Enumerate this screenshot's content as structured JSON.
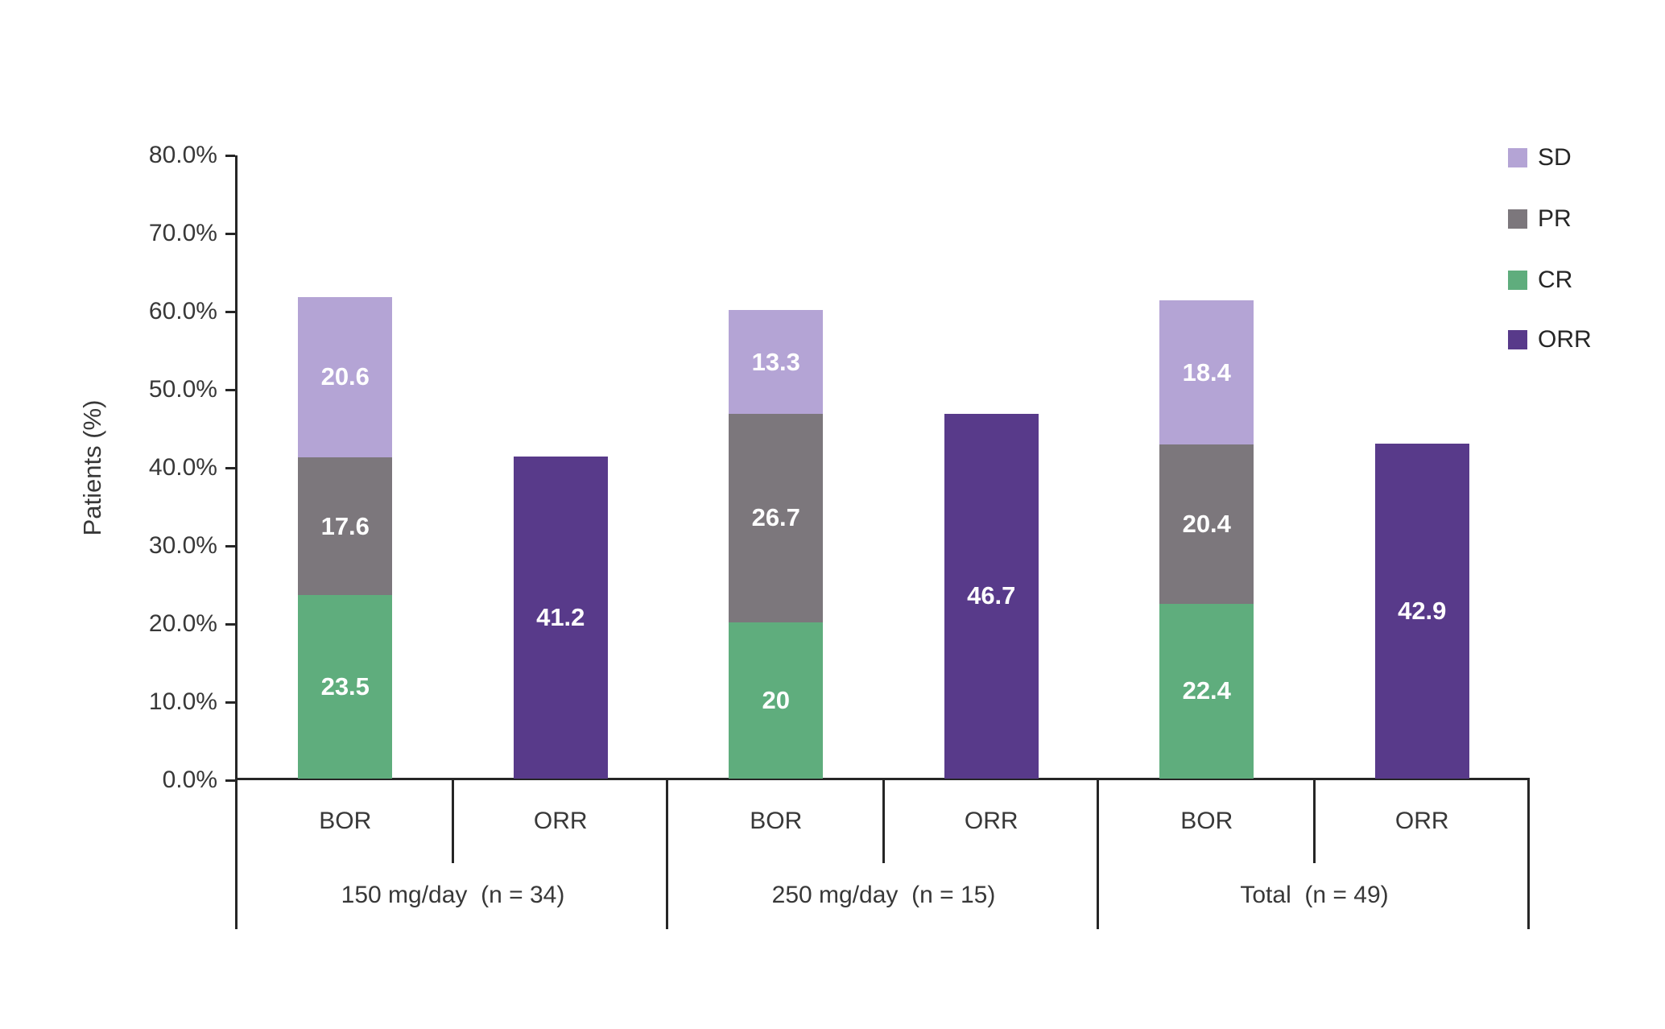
{
  "page": {
    "background": "#ffffff",
    "top_bar_color": "#000000"
  },
  "chart_data": {
    "type": "bar",
    "subtype": "grouped-stacked-column",
    "title": "",
    "xlabel": "",
    "ylabel": "Patients (%)",
    "grid": "off",
    "y_axis": {
      "min": 0,
      "max": 80,
      "step": 10,
      "ticks": [
        {
          "value": 0,
          "label": "0.0%"
        },
        {
          "value": 10,
          "label": "10.0%"
        },
        {
          "value": 20,
          "label": "20.0%"
        },
        {
          "value": 30,
          "label": "30.0%"
        },
        {
          "value": 40,
          "label": "40.0%"
        },
        {
          "value": 50,
          "label": "50.0%"
        },
        {
          "value": 60,
          "label": "60.0%"
        },
        {
          "value": 70,
          "label": "70.0%"
        },
        {
          "value": 80,
          "label": "80.0%"
        }
      ]
    },
    "legend": {
      "position": "top-right",
      "items": [
        {
          "series": "SD",
          "label": "SD"
        },
        {
          "series": "PR",
          "label": "PR"
        },
        {
          "series": "CR",
          "label": "CR"
        },
        {
          "series": "ORR",
          "label": "ORR"
        }
      ]
    },
    "series_colors": {
      "SD": "#b4a4d5",
      "PR": "#7c777c",
      "CR": "#5fad7d",
      "ORR": "#583a8a"
    },
    "value_label_color": "#ffffff",
    "axis_line_color": "#262626",
    "groups": [
      {
        "label": "150 mg/day  (n = 34)",
        "bars": [
          {
            "label": "BOR",
            "segments": [
              {
                "series": "CR",
                "value": 23.5,
                "display": "23.5"
              },
              {
                "series": "PR",
                "value": 17.6,
                "display": "17.6"
              },
              {
                "series": "SD",
                "value": 20.6,
                "display": "20.6"
              }
            ]
          },
          {
            "label": "ORR",
            "segments": [
              {
                "series": "ORR",
                "value": 41.2,
                "display": "41.2"
              }
            ]
          }
        ]
      },
      {
        "label": "250 mg/day  (n = 15)",
        "bars": [
          {
            "label": "BOR",
            "segments": [
              {
                "series": "CR",
                "value": 20.0,
                "display": "20"
              },
              {
                "series": "PR",
                "value": 26.7,
                "display": "26.7"
              },
              {
                "series": "SD",
                "value": 13.3,
                "display": "13.3"
              }
            ]
          },
          {
            "label": "ORR",
            "segments": [
              {
                "series": "ORR",
                "value": 46.7,
                "display": "46.7"
              }
            ]
          }
        ]
      },
      {
        "label": "Total  (n = 49)",
        "bars": [
          {
            "label": "BOR",
            "segments": [
              {
                "series": "CR",
                "value": 22.4,
                "display": "22.4"
              },
              {
                "series": "PR",
                "value": 20.4,
                "display": "20.4"
              },
              {
                "series": "SD",
                "value": 18.4,
                "display": "18.4"
              }
            ]
          },
          {
            "label": "ORR",
            "segments": [
              {
                "series": "ORR",
                "value": 42.9,
                "display": "42.9"
              }
            ]
          }
        ]
      }
    ]
  }
}
